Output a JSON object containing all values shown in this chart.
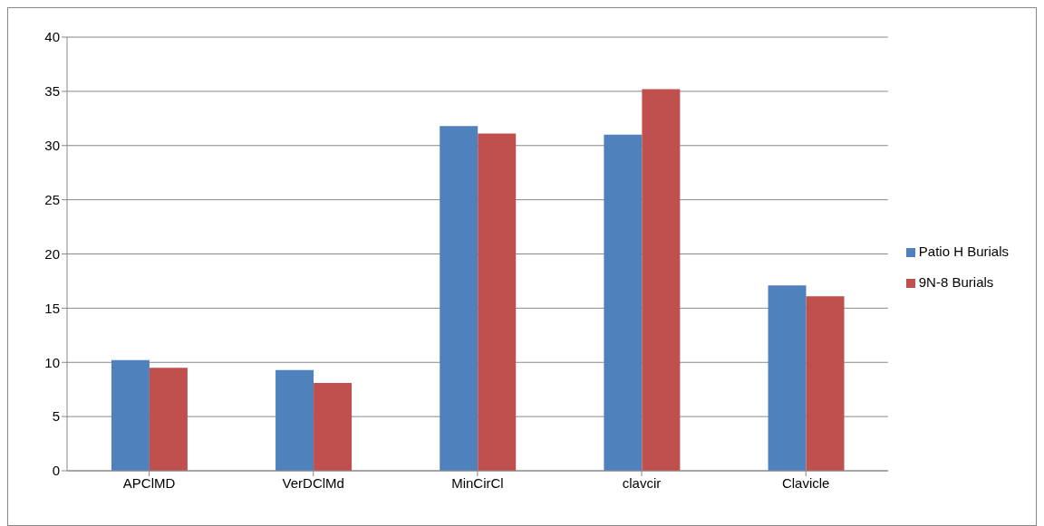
{
  "chart_data": {
    "type": "bar",
    "categories": [
      "APClMD",
      "VerDClMd",
      "MinCirCl",
      "clavcir",
      "Clavicle"
    ],
    "series": [
      {
        "name": "Patio H Burials",
        "color": "#4f81bd",
        "values": [
          10.2,
          9.3,
          31.8,
          31.0,
          17.1
        ]
      },
      {
        "name": "9N-8 Burials",
        "color": "#c0504d",
        "values": [
          9.5,
          8.1,
          31.1,
          35.2,
          16.1
        ]
      }
    ],
    "ylim": [
      0,
      40
    ],
    "yticks": [
      0,
      5,
      10,
      15,
      20,
      25,
      30,
      35,
      40
    ],
    "grid": "y",
    "legend": "right"
  }
}
